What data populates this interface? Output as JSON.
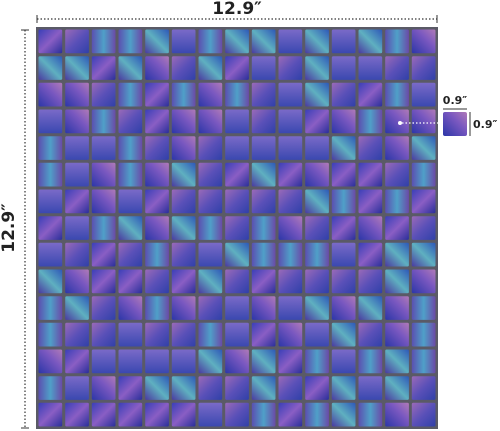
{
  "sheet": {
    "width": "12.9″",
    "height": "12.9″"
  },
  "tile": {
    "width": "0.9″",
    "height": "0.9″"
  }
}
